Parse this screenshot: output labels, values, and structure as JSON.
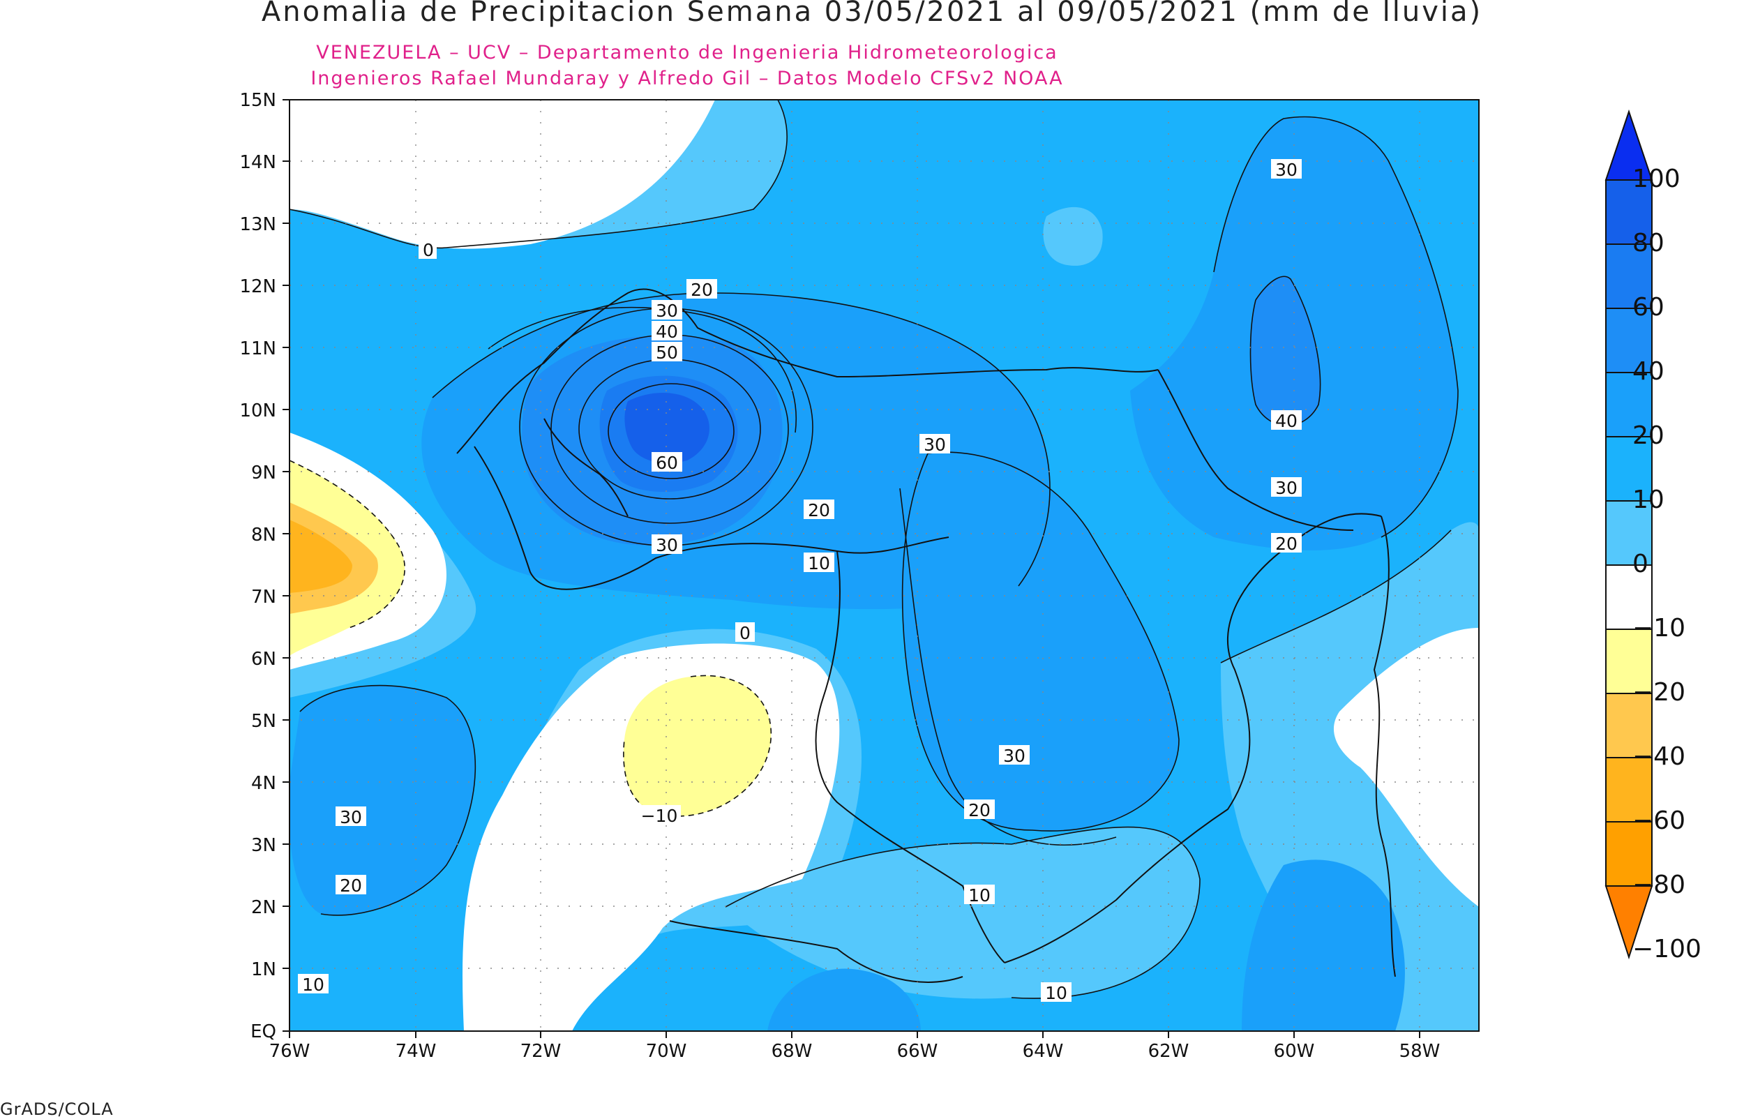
{
  "title": "Anomalia de Precipitacion Semana 03/05/2021 al 09/05/2021 (mm de lluvia)",
  "subtitle_1": "VENEZUELA – UCV – Departamento de Ingenieria Hidrometeorologica",
  "subtitle_2": "Ingenieros Rafael Mundaray y Alfredo Gil – Datos Modelo CFSv2 NOAA",
  "footer": "GrADS/COLA",
  "axes": {
    "lat_ticks": [
      "EQ",
      "1N",
      "2N",
      "3N",
      "4N",
      "5N",
      "6N",
      "7N",
      "8N",
      "9N",
      "10N",
      "11N",
      "12N",
      "13N",
      "14N",
      "15N"
    ],
    "lon_ticks": [
      "76W",
      "74W",
      "72W",
      "70W",
      "68W",
      "66W",
      "64W",
      "62W",
      "60W",
      "58W"
    ]
  },
  "colorbar": {
    "labels": [
      "100",
      "80",
      "60",
      "40",
      "20",
      "10",
      "0",
      "−10",
      "−20",
      "−40",
      "−60",
      "−80",
      "−100"
    ],
    "colors": [
      "#0a2ef0",
      "#1560ea",
      "#1a7cf2",
      "#1e8ef6",
      "#1aa0fa",
      "#1bb2fc",
      "#55c8fc",
      "#ffffff",
      "#ffff96",
      "#ffc84e",
      "#ffb41e",
      "#ffa000",
      "#ff8000"
    ]
  },
  "contour_labels": [
    "0",
    "20",
    "30",
    "40",
    "50",
    "60",
    "30",
    "20",
    "10",
    "0",
    "30",
    "30",
    "40",
    "30",
    "20",
    "30",
    "20",
    "10",
    "10",
    "−10",
    "30",
    "20",
    "10"
  ]
}
